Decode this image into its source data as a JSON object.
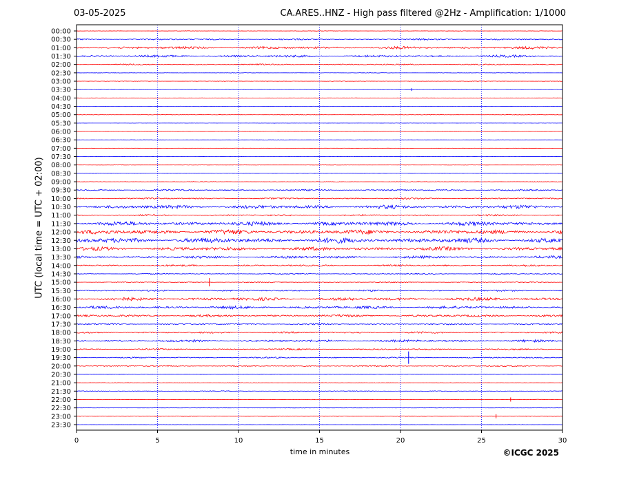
{
  "header": {
    "date": "03-05-2025",
    "title": "CA.ARES..HNZ - High pass filtered @2Hz - Amplification: 1/1000"
  },
  "footer": {
    "copyright": "©ICGC 2025"
  },
  "chart_data": {
    "type": "line",
    "xlabel": "time in minutes",
    "ylabel": "UTC (local time = UTC + 02:00)",
    "xlim": [
      0,
      30
    ],
    "xticks": [
      0,
      5,
      10,
      15,
      20,
      25,
      30
    ],
    "vertical_gridlines_at": [
      5,
      10,
      15,
      20,
      25
    ],
    "grid_style": "dotted blue vertical",
    "colors": {
      "red": "#ff0000",
      "blue": "#0000ff"
    },
    "row_labels": [
      "00:00",
      "00:30",
      "01:00",
      "01:30",
      "02:00",
      "02:30",
      "03:00",
      "03:30",
      "04:00",
      "04:30",
      "05:00",
      "05:30",
      "06:00",
      "06:30",
      "07:00",
      "07:30",
      "08:00",
      "08:30",
      "09:00",
      "09:30",
      "10:00",
      "10:30",
      "11:00",
      "11:30",
      "12:00",
      "12:30",
      "13:00",
      "13:30",
      "14:00",
      "14:30",
      "15:00",
      "15:30",
      "16:00",
      "16:30",
      "17:00",
      "17:30",
      "18:00",
      "18:30",
      "19:00",
      "19:30",
      "20:00",
      "20:30",
      "21:00",
      "21:30",
      "22:00",
      "22:30",
      "23:00",
      "23:30"
    ],
    "trace_colors_alternate": [
      "red",
      "blue"
    ],
    "activity_level": [
      0.15,
      0.6,
      1.0,
      0.9,
      0.5,
      0.15,
      0.2,
      0.2,
      0.1,
      0.15,
      0.2,
      0.1,
      0.1,
      0.1,
      0.1,
      0.1,
      0.1,
      0.1,
      0.2,
      0.6,
      0.6,
      1.4,
      0.6,
      1.6,
      1.8,
      2.0,
      1.4,
      1.0,
      0.7,
      0.4,
      0.4,
      0.6,
      1.2,
      1.1,
      0.9,
      0.6,
      0.7,
      0.9,
      0.6,
      0.5,
      0.5,
      0.1,
      0.15,
      0.3,
      0.2,
      0.1,
      0.2,
      0.1
    ],
    "events": [
      {
        "row": "03:30",
        "minute": 20.7,
        "amp": 2
      },
      {
        "row": "15:00",
        "minute": 8.2,
        "amp": 6
      },
      {
        "row": "19:30",
        "minute": 20.5,
        "amp": 9
      },
      {
        "row": "22:00",
        "minute": 26.8,
        "amp": 3
      },
      {
        "row": "23:00",
        "minute": 25.9,
        "amp": 3
      }
    ]
  }
}
